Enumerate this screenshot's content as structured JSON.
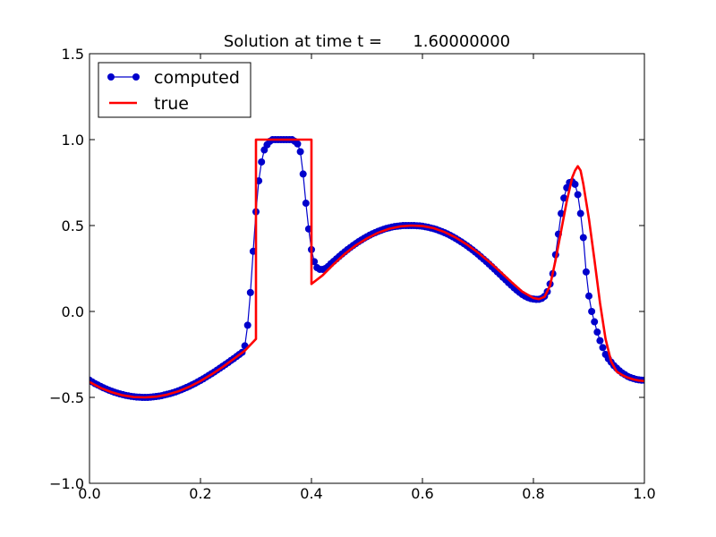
{
  "chart_data": {
    "type": "line",
    "title": "Solution at time t =      1.60000000",
    "xlabel": "",
    "ylabel": "",
    "xlim": [
      0.0,
      1.0
    ],
    "ylim": [
      -1.0,
      1.5
    ],
    "xticks": [
      0.0,
      0.2,
      0.4,
      0.6,
      0.8,
      1.0
    ],
    "xtick_labels": [
      "0.0",
      "0.2",
      "0.4",
      "0.6",
      "0.8",
      "1.0"
    ],
    "yticks": [
      -1.0,
      -0.5,
      0.0,
      0.5,
      1.0,
      1.5
    ],
    "ytick_labels": [
      "−1.0",
      "−0.5",
      "0.0",
      "0.5",
      "1.0",
      "1.5"
    ],
    "grid": false,
    "legend_position": "top-left",
    "series": [
      {
        "name": "computed",
        "style": "line-with-markers",
        "color": "#0000cc",
        "marker_color": "#0000cc",
        "points": [
          [
            0.0,
            -0.4
          ],
          [
            0.005,
            -0.41
          ],
          [
            0.01,
            -0.42
          ],
          [
            0.015,
            -0.428
          ],
          [
            0.02,
            -0.436
          ],
          [
            0.025,
            -0.444
          ],
          [
            0.03,
            -0.451
          ],
          [
            0.035,
            -0.458
          ],
          [
            0.04,
            -0.464
          ],
          [
            0.045,
            -0.47
          ],
          [
            0.05,
            -0.475
          ],
          [
            0.055,
            -0.48
          ],
          [
            0.06,
            -0.484
          ],
          [
            0.065,
            -0.488
          ],
          [
            0.07,
            -0.491
          ],
          [
            0.075,
            -0.494
          ],
          [
            0.08,
            -0.496
          ],
          [
            0.085,
            -0.498
          ],
          [
            0.09,
            -0.499
          ],
          [
            0.095,
            -0.5
          ],
          [
            0.1,
            -0.5
          ],
          [
            0.105,
            -0.5
          ],
          [
            0.11,
            -0.499
          ],
          [
            0.115,
            -0.497
          ],
          [
            0.12,
            -0.495
          ],
          [
            0.125,
            -0.493
          ],
          [
            0.13,
            -0.49
          ],
          [
            0.135,
            -0.486
          ],
          [
            0.14,
            -0.482
          ],
          [
            0.145,
            -0.478
          ],
          [
            0.15,
            -0.473
          ],
          [
            0.155,
            -0.468
          ],
          [
            0.16,
            -0.462
          ],
          [
            0.165,
            -0.456
          ],
          [
            0.17,
            -0.449
          ],
          [
            0.175,
            -0.442
          ],
          [
            0.18,
            -0.435
          ],
          [
            0.185,
            -0.427
          ],
          [
            0.19,
            -0.419
          ],
          [
            0.195,
            -0.41
          ],
          [
            0.2,
            -0.401
          ],
          [
            0.205,
            -0.392
          ],
          [
            0.21,
            -0.382
          ],
          [
            0.215,
            -0.372
          ],
          [
            0.22,
            -0.362
          ],
          [
            0.225,
            -0.352
          ],
          [
            0.23,
            -0.341
          ],
          [
            0.235,
            -0.33
          ],
          [
            0.24,
            -0.319
          ],
          [
            0.245,
            -0.308
          ],
          [
            0.25,
            -0.297
          ],
          [
            0.255,
            -0.285
          ],
          [
            0.26,
            -0.274
          ],
          [
            0.265,
            -0.262
          ],
          [
            0.27,
            -0.25
          ],
          [
            0.275,
            -0.238
          ],
          [
            0.28,
            -0.2
          ],
          [
            0.285,
            -0.08
          ],
          [
            0.29,
            0.11
          ],
          [
            0.295,
            0.35
          ],
          [
            0.3,
            0.58
          ],
          [
            0.305,
            0.76
          ],
          [
            0.31,
            0.87
          ],
          [
            0.315,
            0.94
          ],
          [
            0.32,
            0.97
          ],
          [
            0.325,
            0.99
          ],
          [
            0.33,
            1.0
          ],
          [
            0.335,
            1.0
          ],
          [
            0.34,
            1.0
          ],
          [
            0.345,
            1.0
          ],
          [
            0.35,
            1.0
          ],
          [
            0.355,
            1.0
          ],
          [
            0.36,
            1.0
          ],
          [
            0.365,
            1.0
          ],
          [
            0.37,
            0.99
          ],
          [
            0.375,
            0.975
          ],
          [
            0.38,
            0.93
          ],
          [
            0.385,
            0.8
          ],
          [
            0.39,
            0.63
          ],
          [
            0.395,
            0.48
          ],
          [
            0.4,
            0.36
          ],
          [
            0.405,
            0.29
          ],
          [
            0.41,
            0.255
          ],
          [
            0.415,
            0.245
          ],
          [
            0.42,
            0.245
          ],
          [
            0.425,
            0.25
          ],
          [
            0.43,
            0.262
          ],
          [
            0.435,
            0.278
          ],
          [
            0.44,
            0.292
          ],
          [
            0.445,
            0.306
          ],
          [
            0.45,
            0.32
          ],
          [
            0.455,
            0.334
          ],
          [
            0.46,
            0.347
          ],
          [
            0.465,
            0.36
          ],
          [
            0.47,
            0.372
          ],
          [
            0.475,
            0.384
          ],
          [
            0.48,
            0.395
          ],
          [
            0.485,
            0.406
          ],
          [
            0.49,
            0.416
          ],
          [
            0.495,
            0.426
          ],
          [
            0.5,
            0.435
          ],
          [
            0.505,
            0.444
          ],
          [
            0.51,
            0.452
          ],
          [
            0.515,
            0.459
          ],
          [
            0.52,
            0.466
          ],
          [
            0.525,
            0.472
          ],
          [
            0.53,
            0.478
          ],
          [
            0.535,
            0.483
          ],
          [
            0.54,
            0.487
          ],
          [
            0.545,
            0.491
          ],
          [
            0.55,
            0.494
          ],
          [
            0.555,
            0.496
          ],
          [
            0.56,
            0.498
          ],
          [
            0.565,
            0.5
          ],
          [
            0.57,
            0.5
          ],
          [
            0.575,
            0.5
          ],
          [
            0.58,
            0.5
          ],
          [
            0.585,
            0.5
          ],
          [
            0.59,
            0.499
          ],
          [
            0.595,
            0.498
          ],
          [
            0.6,
            0.496
          ],
          [
            0.605,
            0.493
          ],
          [
            0.61,
            0.49
          ],
          [
            0.615,
            0.486
          ],
          [
            0.62,
            0.482
          ],
          [
            0.625,
            0.477
          ],
          [
            0.63,
            0.471
          ],
          [
            0.635,
            0.465
          ],
          [
            0.64,
            0.458
          ],
          [
            0.645,
            0.451
          ],
          [
            0.65,
            0.443
          ],
          [
            0.655,
            0.434
          ],
          [
            0.66,
            0.425
          ],
          [
            0.665,
            0.415
          ],
          [
            0.67,
            0.405
          ],
          [
            0.675,
            0.394
          ],
          [
            0.68,
            0.383
          ],
          [
            0.685,
            0.371
          ],
          [
            0.69,
            0.359
          ],
          [
            0.695,
            0.346
          ],
          [
            0.7,
            0.333
          ],
          [
            0.705,
            0.319
          ],
          [
            0.71,
            0.305
          ],
          [
            0.715,
            0.291
          ],
          [
            0.72,
            0.276
          ],
          [
            0.725,
            0.261
          ],
          [
            0.73,
            0.246
          ],
          [
            0.735,
            0.23
          ],
          [
            0.74,
            0.215
          ],
          [
            0.745,
            0.199
          ],
          [
            0.75,
            0.184
          ],
          [
            0.755,
            0.168
          ],
          [
            0.76,
            0.153
          ],
          [
            0.765,
            0.138
          ],
          [
            0.77,
            0.124
          ],
          [
            0.775,
            0.111
          ],
          [
            0.78,
            0.099
          ],
          [
            0.785,
            0.089
          ],
          [
            0.79,
            0.081
          ],
          [
            0.795,
            0.075
          ],
          [
            0.8,
            0.072
          ],
          [
            0.805,
            0.07
          ],
          [
            0.81,
            0.071
          ],
          [
            0.815,
            0.076
          ],
          [
            0.82,
            0.088
          ],
          [
            0.825,
            0.115
          ],
          [
            0.83,
            0.16
          ],
          [
            0.835,
            0.22
          ],
          [
            0.84,
            0.33
          ],
          [
            0.845,
            0.45
          ],
          [
            0.85,
            0.57
          ],
          [
            0.855,
            0.66
          ],
          [
            0.86,
            0.72
          ],
          [
            0.865,
            0.75
          ],
          [
            0.87,
            0.755
          ],
          [
            0.875,
            0.74
          ],
          [
            0.88,
            0.68
          ],
          [
            0.885,
            0.57
          ],
          [
            0.89,
            0.43
          ],
          [
            0.895,
            0.23
          ],
          [
            0.9,
            0.09
          ],
          [
            0.905,
            0.0
          ],
          [
            0.91,
            -0.06
          ],
          [
            0.915,
            -0.12
          ],
          [
            0.92,
            -0.17
          ],
          [
            0.925,
            -0.21
          ],
          [
            0.93,
            -0.25
          ],
          [
            0.935,
            -0.275
          ],
          [
            0.94,
            -0.295
          ],
          [
            0.945,
            -0.315
          ],
          [
            0.95,
            -0.33
          ],
          [
            0.955,
            -0.345
          ],
          [
            0.96,
            -0.358
          ],
          [
            0.965,
            -0.368
          ],
          [
            0.97,
            -0.378
          ],
          [
            0.975,
            -0.385
          ],
          [
            0.98,
            -0.39
          ],
          [
            0.985,
            -0.395
          ],
          [
            0.99,
            -0.398
          ],
          [
            0.995,
            -0.4
          ],
          [
            1.0,
            -0.4
          ]
        ]
      },
      {
        "name": "true",
        "style": "line",
        "color": "#ff0000",
        "points": [
          [
            0.0,
            -0.41
          ],
          [
            0.02,
            -0.445
          ],
          [
            0.04,
            -0.47
          ],
          [
            0.06,
            -0.488
          ],
          [
            0.08,
            -0.498
          ],
          [
            0.1,
            -0.5
          ],
          [
            0.12,
            -0.496
          ],
          [
            0.14,
            -0.484
          ],
          [
            0.16,
            -0.465
          ],
          [
            0.18,
            -0.438
          ],
          [
            0.2,
            -0.405
          ],
          [
            0.22,
            -0.366
          ],
          [
            0.24,
            -0.323
          ],
          [
            0.26,
            -0.276
          ],
          [
            0.28,
            -0.228
          ],
          [
            0.3,
            -0.16
          ],
          [
            0.3,
            1.0
          ],
          [
            0.4,
            1.0
          ],
          [
            0.4,
            0.16
          ],
          [
            0.42,
            0.21
          ],
          [
            0.44,
            0.275
          ],
          [
            0.46,
            0.335
          ],
          [
            0.48,
            0.385
          ],
          [
            0.5,
            0.425
          ],
          [
            0.52,
            0.458
          ],
          [
            0.54,
            0.481
          ],
          [
            0.56,
            0.495
          ],
          [
            0.58,
            0.5
          ],
          [
            0.6,
            0.497
          ],
          [
            0.62,
            0.485
          ],
          [
            0.64,
            0.462
          ],
          [
            0.66,
            0.43
          ],
          [
            0.68,
            0.39
          ],
          [
            0.7,
            0.343
          ],
          [
            0.72,
            0.29
          ],
          [
            0.74,
            0.232
          ],
          [
            0.76,
            0.172
          ],
          [
            0.78,
            0.115
          ],
          [
            0.8,
            0.078
          ],
          [
            0.81,
            0.072
          ],
          [
            0.82,
            0.085
          ],
          [
            0.83,
            0.15
          ],
          [
            0.84,
            0.3
          ],
          [
            0.85,
            0.47
          ],
          [
            0.86,
            0.64
          ],
          [
            0.87,
            0.78
          ],
          [
            0.875,
            0.82
          ],
          [
            0.88,
            0.845
          ],
          [
            0.885,
            0.82
          ],
          [
            0.89,
            0.74
          ],
          [
            0.9,
            0.54
          ],
          [
            0.91,
            0.3
          ],
          [
            0.92,
            0.05
          ],
          [
            0.93,
            -0.16
          ],
          [
            0.94,
            -0.29
          ],
          [
            0.95,
            -0.35
          ],
          [
            0.96,
            -0.37
          ],
          [
            0.97,
            -0.385
          ],
          [
            0.98,
            -0.395
          ],
          [
            0.99,
            -0.402
          ],
          [
            1.0,
            -0.405
          ]
        ]
      }
    ]
  }
}
